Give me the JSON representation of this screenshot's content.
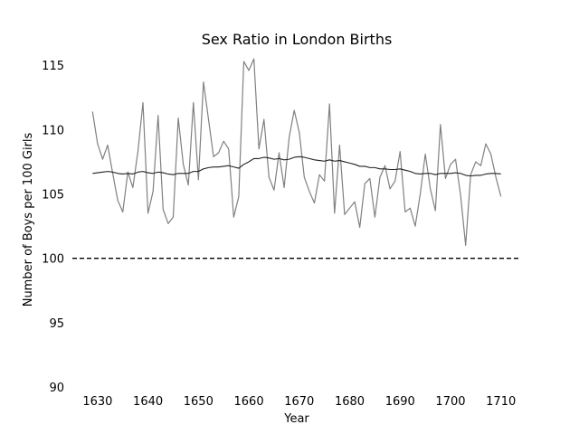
{
  "chart_data": {
    "type": "line",
    "title": "Sex Ratio in London Births",
    "xlabel": "Year",
    "ylabel": "Number of Boys per 100 Girls",
    "xlim": [
      1625,
      1714
    ],
    "ylim": [
      90,
      116
    ],
    "x_ticks": [
      1630,
      1640,
      1650,
      1660,
      1670,
      1680,
      1690,
      1700,
      1710
    ],
    "y_ticks": [
      90,
      95,
      100,
      105,
      110,
      115
    ],
    "grid": false,
    "reference_line": {
      "y": 100,
      "style": "dashed",
      "color": "#000000"
    },
    "series": [
      {
        "color": "#808080",
        "x": [
          1629,
          1630,
          1631,
          1632,
          1633,
          1634,
          1635,
          1636,
          1637,
          1638,
          1639,
          1640,
          1641,
          1642,
          1643,
          1644,
          1645,
          1646,
          1647,
          1648,
          1649,
          1650,
          1651,
          1652,
          1653,
          1654,
          1655,
          1656,
          1657,
          1658,
          1659,
          1660,
          1661,
          1662,
          1663,
          1664,
          1665,
          1666,
          1667,
          1668,
          1669,
          1670,
          1671,
          1672,
          1673,
          1674,
          1675,
          1676,
          1677,
          1678,
          1679,
          1680,
          1681,
          1682,
          1683,
          1684,
          1685,
          1686,
          1687,
          1688,
          1689,
          1690,
          1691,
          1692,
          1693,
          1694,
          1695,
          1696,
          1697,
          1698,
          1699,
          1700,
          1701,
          1702,
          1703,
          1704,
          1705,
          1706,
          1707,
          1708,
          1709,
          1710
        ],
        "values": [
          111.4,
          108.9,
          107.7,
          108.8,
          106.6,
          104.5,
          103.6,
          106.7,
          105.5,
          108.3,
          112.1,
          103.5,
          105.2,
          111.1,
          103.8,
          102.7,
          103.2,
          110.9,
          107.3,
          105.7,
          112.1,
          106.1,
          113.7,
          110.8,
          107.9,
          108.2,
          109.1,
          108.5,
          103.2,
          104.8,
          115.3,
          114.6,
          115.5,
          108.5,
          110.8,
          106.3,
          105.3,
          108.2,
          105.5,
          109.4,
          111.5,
          109.8,
          106.3,
          105.2,
          104.3,
          106.5,
          106.0,
          112.0,
          103.5,
          108.8,
          103.4,
          103.9,
          104.4,
          102.4,
          105.8,
          106.2,
          103.2,
          106.3,
          107.2,
          105.4,
          106.0,
          108.3,
          103.6,
          103.9,
          102.5,
          105.0,
          108.1,
          105.4,
          103.7,
          110.4,
          106.2,
          107.3,
          107.7,
          104.9,
          101.0,
          106.5,
          107.5,
          107.2,
          108.9,
          108.1,
          106.3,
          104.8
        ]
      },
      {
        "color": "#222222",
        "x": [
          1629,
          1630,
          1631,
          1632,
          1633,
          1634,
          1635,
          1636,
          1637,
          1638,
          1639,
          1640,
          1641,
          1642,
          1643,
          1644,
          1645,
          1646,
          1647,
          1648,
          1649,
          1650,
          1651,
          1652,
          1653,
          1654,
          1655,
          1656,
          1657,
          1658,
          1659,
          1660,
          1661,
          1662,
          1663,
          1664,
          1665,
          1666,
          1667,
          1668,
          1669,
          1670,
          1671,
          1672,
          1673,
          1674,
          1675,
          1676,
          1677,
          1678,
          1679,
          1680,
          1681,
          1682,
          1683,
          1684,
          1685,
          1686,
          1687,
          1688,
          1689,
          1690,
          1691,
          1692,
          1693,
          1694,
          1695,
          1696,
          1697,
          1698,
          1699,
          1700,
          1701,
          1702,
          1703,
          1704,
          1705,
          1706,
          1707,
          1708,
          1709,
          1710
        ],
        "values": [
          106.6,
          106.65,
          106.7,
          106.75,
          106.7,
          106.6,
          106.55,
          106.6,
          106.55,
          106.7,
          106.75,
          106.65,
          106.6,
          106.7,
          106.65,
          106.55,
          106.5,
          106.6,
          106.6,
          106.6,
          106.75,
          106.75,
          106.95,
          107.05,
          107.1,
          107.1,
          107.15,
          107.2,
          107.1,
          107.0,
          107.3,
          107.5,
          107.75,
          107.75,
          107.85,
          107.8,
          107.7,
          107.75,
          107.65,
          107.7,
          107.85,
          107.9,
          107.85,
          107.75,
          107.65,
          107.6,
          107.55,
          107.65,
          107.55,
          107.6,
          107.5,
          107.4,
          107.3,
          107.15,
          107.15,
          107.05,
          107.05,
          106.95,
          106.95,
          106.9,
          106.9,
          106.95,
          106.85,
          106.75,
          106.6,
          106.55,
          106.6,
          106.6,
          106.5,
          106.6,
          106.6,
          106.6,
          106.65,
          106.6,
          106.45,
          106.4,
          106.45,
          106.45,
          106.55,
          106.6,
          106.6,
          106.55
        ]
      }
    ]
  }
}
